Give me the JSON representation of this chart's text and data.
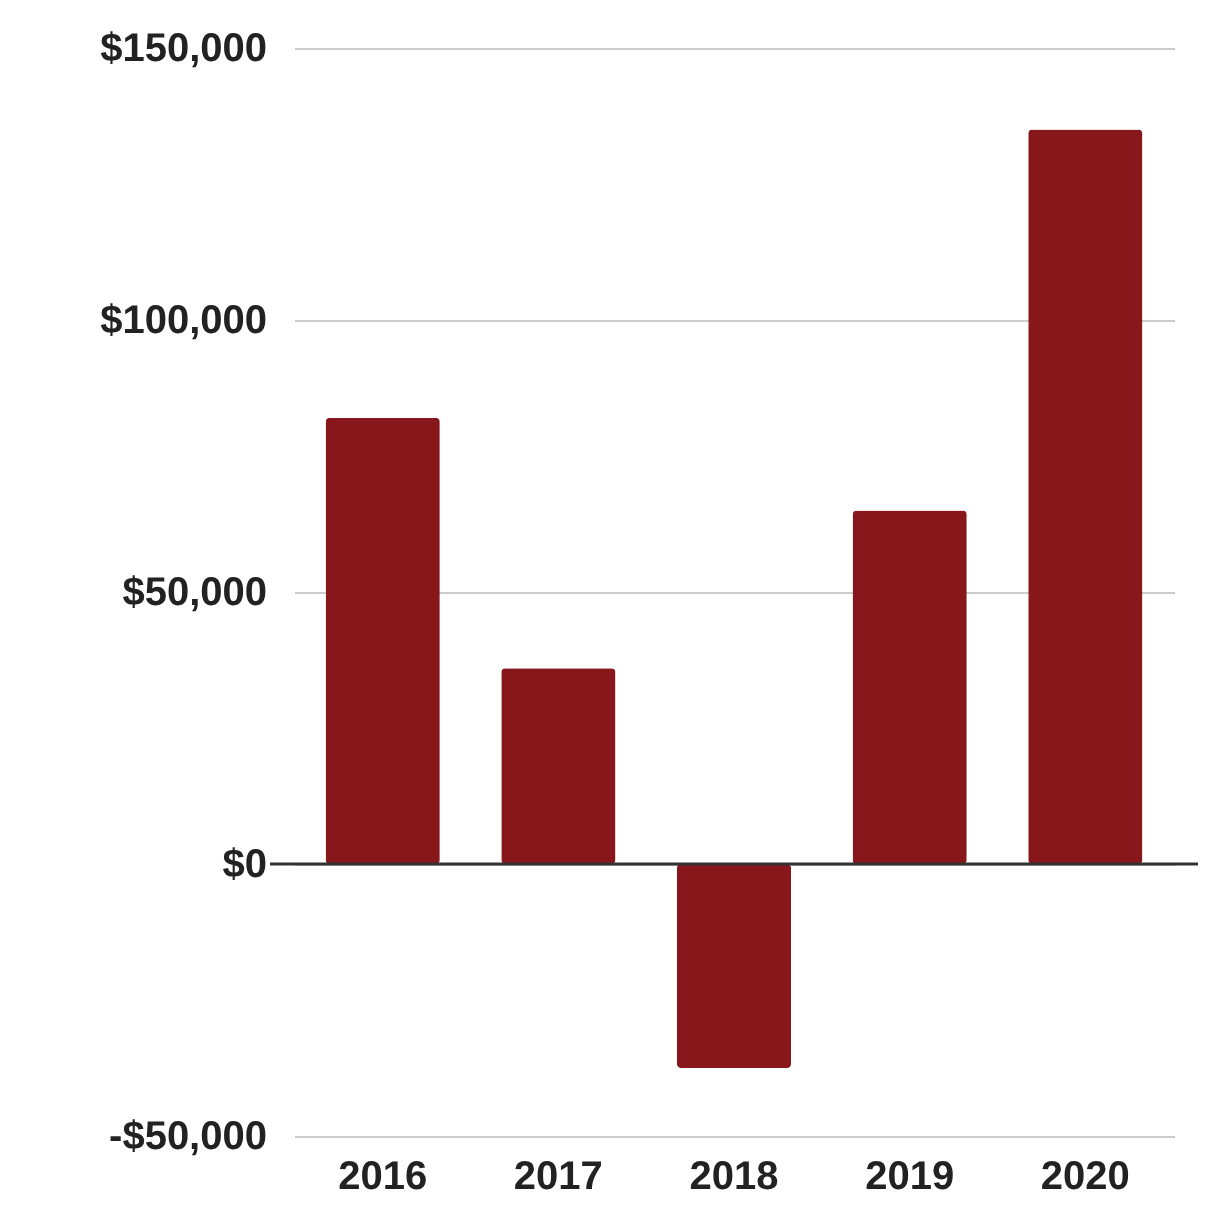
{
  "chart_data": {
    "type": "bar",
    "categories": [
      "2016",
      "2017",
      "2018",
      "2019",
      "2020"
    ],
    "values": [
      82000,
      36000,
      -37500,
      65000,
      135000
    ],
    "color": "#87171a",
    "ylim": [
      -50000,
      150000
    ],
    "yticks": [
      {
        "value": -50000,
        "label": "-$50,000"
      },
      {
        "value": 0,
        "label": "$0"
      },
      {
        "value": 50000,
        "label": "$50,000"
      },
      {
        "value": 100000,
        "label": "$100,000"
      },
      {
        "value": 150000,
        "label": "$150,000"
      }
    ],
    "grid": "y"
  }
}
